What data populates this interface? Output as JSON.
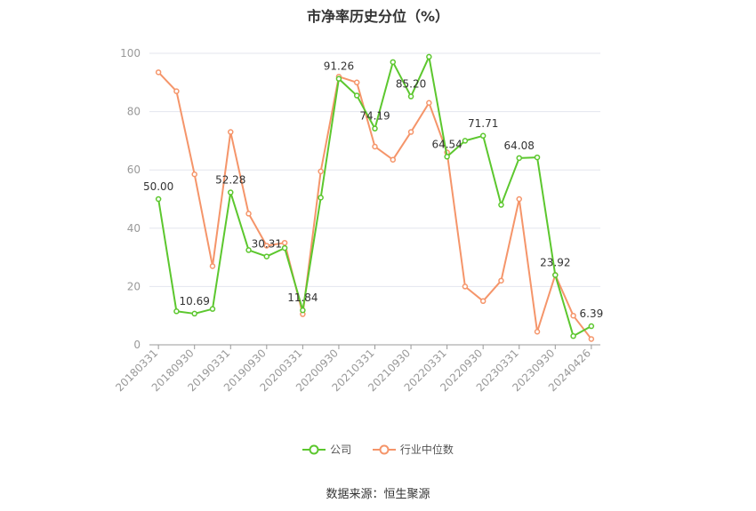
{
  "chart_data": {
    "type": "line",
    "title": "市净率历史分位（%）",
    "source_label": "数据来源：恒生聚源",
    "ylim": [
      0,
      100
    ],
    "yticks": [
      0,
      20,
      40,
      60,
      80,
      100
    ],
    "grid": true,
    "legend_position": "bottom",
    "x_tick_labels": [
      "20180331",
      "20180930",
      "20190331",
      "20190930",
      "20200331",
      "20200930",
      "20210331",
      "20210930",
      "20220331",
      "20220930",
      "20230331",
      "20230930",
      "20240426"
    ],
    "x": [
      "20180331",
      "20180630",
      "20180930",
      "20181231",
      "20190331",
      "20190630",
      "20190930",
      "20191231",
      "20200331",
      "20200630",
      "20200930",
      "20201231",
      "20210331",
      "20210630",
      "20210930",
      "20211231",
      "20220331",
      "20220630",
      "20220930",
      "20221231",
      "20230331",
      "20230630",
      "20230930",
      "20231231",
      "20240426"
    ],
    "series": [
      {
        "name": "公司",
        "color": "#5cc72e",
        "values": [
          50.0,
          11.5,
          10.69,
          12.3,
          52.28,
          32.5,
          30.31,
          33.2,
          11.84,
          50.5,
          91.26,
          85.5,
          74.19,
          97.0,
          85.2,
          98.8,
          64.54,
          70.0,
          71.71,
          48.0,
          64.08,
          64.3,
          23.92,
          3.0,
          6.39
        ],
        "labels": {
          "0": "50.00",
          "2": "10.69",
          "4": "52.28",
          "6": "30.31",
          "8": "11.84",
          "10": "91.26",
          "12": "74.19",
          "14": "85.20",
          "16": "64.54",
          "18": "71.71",
          "20": "64.08",
          "22": "23.92",
          "24": "6.39"
        }
      },
      {
        "name": "行业中位数",
        "color": "#f5956a",
        "values": [
          93.5,
          87.0,
          58.5,
          27.0,
          73.0,
          45.0,
          34.0,
          35.0,
          10.5,
          59.5,
          92.0,
          90.0,
          68.0,
          63.5,
          73.0,
          83.0,
          66.0,
          20.0,
          15.0,
          22.0,
          50.0,
          4.5,
          24.0,
          10.0,
          2.0
        ]
      }
    ]
  }
}
